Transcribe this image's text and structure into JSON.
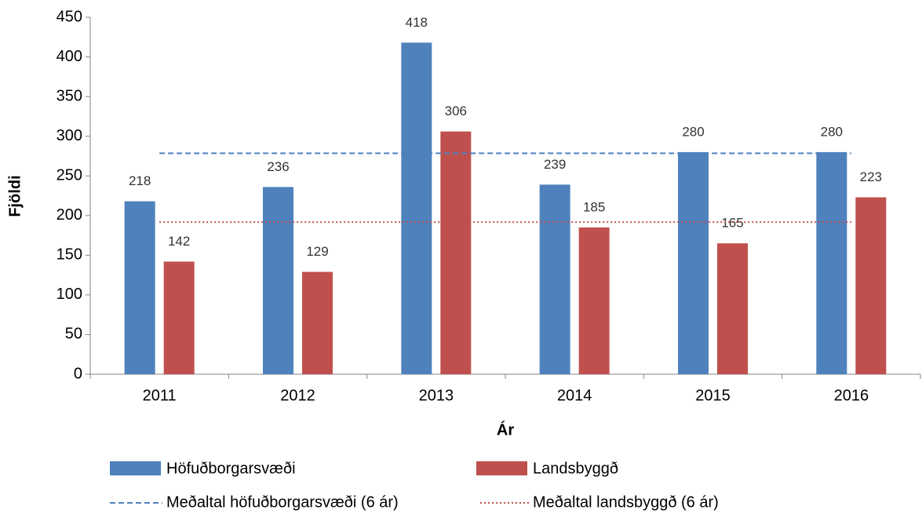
{
  "chart_data": {
    "type": "bar",
    "x_label": "Ár",
    "y_label": "Fjöldi",
    "categories": [
      "2011",
      "2012",
      "2013",
      "2014",
      "2015",
      "2016"
    ],
    "series": [
      {
        "name": "Höfuðborgarsvæði",
        "color": "#4f81bd",
        "values": [
          218,
          236,
          418,
          239,
          280,
          280
        ]
      },
      {
        "name": "Landsbyggð",
        "color": "#c0504d",
        "values": [
          142,
          129,
          306,
          185,
          165,
          223
        ]
      }
    ],
    "reference_lines": [
      {
        "name": "Meðaltal höfuðborgarsvæði (6 ár)",
        "color": "#4f81bd",
        "style": "dashed",
        "value": 278.5
      },
      {
        "name": "Meðaltal landsbyggð (6 ár)",
        "color": "#c0504d",
        "style": "dotted",
        "value": 191.7
      }
    ],
    "ylim": [
      0,
      450
    ],
    "yticks": [
      0,
      50,
      100,
      150,
      200,
      250,
      300,
      350,
      400,
      450
    ],
    "grid": false,
    "data_labels": true,
    "legend": "bottom"
  }
}
